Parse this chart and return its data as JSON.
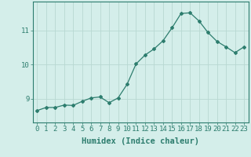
{
  "x": [
    0,
    1,
    2,
    3,
    4,
    5,
    6,
    7,
    8,
    9,
    10,
    11,
    12,
    13,
    14,
    15,
    16,
    17,
    18,
    19,
    20,
    21,
    22,
    23
  ],
  "y": [
    8.65,
    8.74,
    8.74,
    8.81,
    8.8,
    8.92,
    9.02,
    9.05,
    8.88,
    9.02,
    9.42,
    10.02,
    10.28,
    10.46,
    10.7,
    11.08,
    11.5,
    11.52,
    11.28,
    10.94,
    10.68,
    10.52,
    10.35,
    10.52
  ],
  "line_color": "#2d7d6e",
  "bg_color": "#d4eeea",
  "grid_color": "#b8d8d2",
  "xlabel": "Humidex (Indice chaleur)",
  "yticks": [
    9,
    10,
    11
  ],
  "ylim": [
    8.3,
    11.85
  ],
  "xlim": [
    -0.5,
    23.5
  ],
  "xlabel_fontsize": 7.5,
  "tick_fontsize": 6.5,
  "marker": "D",
  "marker_size": 2.0,
  "line_width": 0.9
}
